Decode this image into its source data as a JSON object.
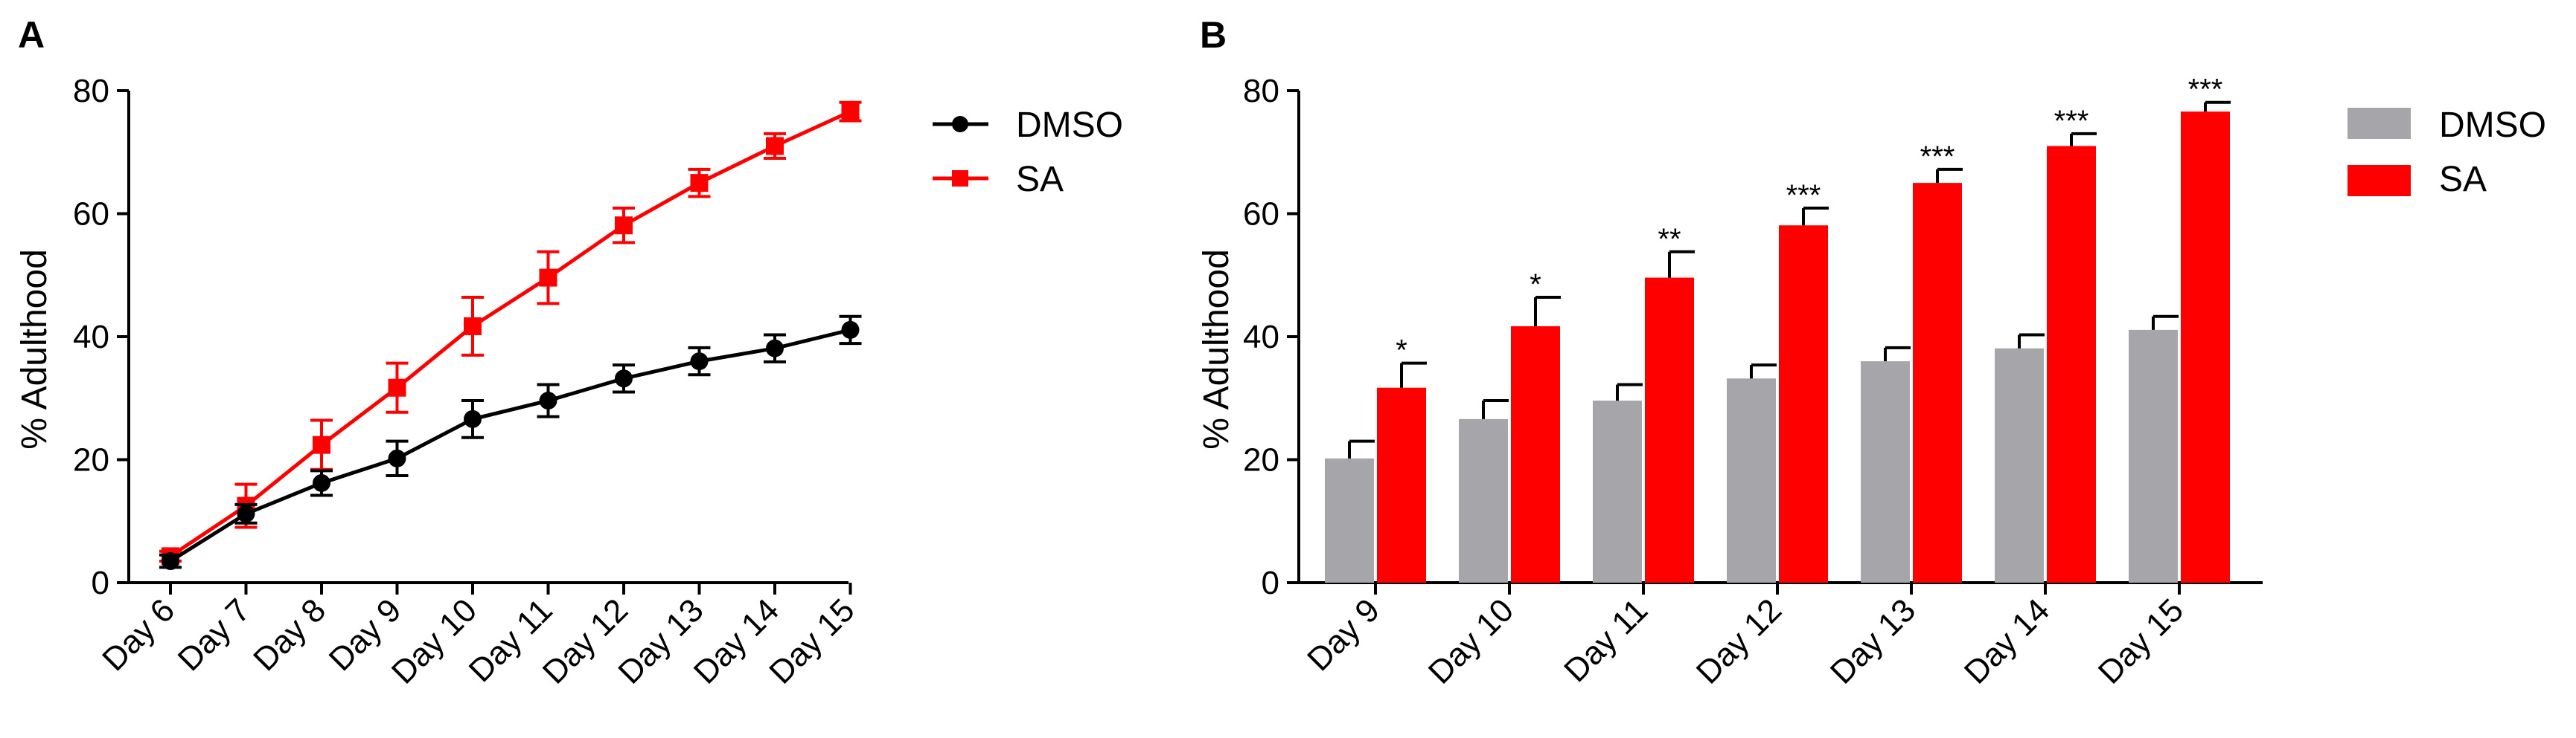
{
  "chart_data": [
    {
      "panel": "A",
      "type": "line",
      "title": "",
      "xlabel": "",
      "ylabel": "% Adulthood",
      "ylim": [
        0,
        80
      ],
      "yticks": [
        "0",
        "20",
        "40",
        "60",
        "80"
      ],
      "categories": [
        "Day 6",
        "Day 7",
        "Day 8",
        "Day 9",
        "Day 10",
        "Day 11",
        "Day 12",
        "Day 13",
        "Day 14",
        "Day 15"
      ],
      "legend_position": "top-right-outside",
      "series": [
        {
          "name": "DMSO",
          "color": "#000000",
          "marker": "circle",
          "values": [
            3.5,
            11.2,
            16.2,
            20.2,
            26.6,
            29.6,
            33.2,
            36.0,
            38.1,
            41.1
          ],
          "errors": [
            1.0,
            1.5,
            2.0,
            2.8,
            3.0,
            2.6,
            2.2,
            2.2,
            2.2,
            2.2
          ]
        },
        {
          "name": "SA",
          "color": "#ff0000",
          "marker": "square",
          "values": [
            4.3,
            12.5,
            22.4,
            31.7,
            41.7,
            49.6,
            58.1,
            65.0,
            71.0,
            76.6
          ],
          "errors": [
            0.8,
            3.5,
            4.0,
            4.0,
            4.7,
            4.2,
            2.8,
            2.2,
            2.0,
            1.5
          ]
        }
      ]
    },
    {
      "panel": "B",
      "type": "bar",
      "title": "",
      "xlabel": "",
      "ylabel": "% Adulthood",
      "ylim": [
        0,
        80
      ],
      "yticks": [
        "0",
        "20",
        "40",
        "60",
        "80"
      ],
      "categories": [
        "Day 9",
        "Day 10",
        "Day 11",
        "Day 12",
        "Day 13",
        "Day 14",
        "Day 15"
      ],
      "legend_position": "top-right-outside",
      "series": [
        {
          "name": "DMSO",
          "color": "#a5a5aa",
          "values": [
            20.2,
            26.6,
            29.6,
            33.2,
            36.0,
            38.1,
            41.1
          ],
          "errors": [
            2.8,
            3.0,
            2.6,
            2.2,
            2.2,
            2.2,
            2.2
          ]
        },
        {
          "name": "SA",
          "color": "#ff0000",
          "values": [
            31.7,
            41.7,
            49.6,
            58.1,
            65.0,
            71.0,
            76.6
          ],
          "errors": [
            4.0,
            4.7,
            4.2,
            2.8,
            2.2,
            2.0,
            1.5
          ]
        }
      ],
      "annotations": [
        "*",
        "*",
        "**",
        "***",
        "***",
        "***",
        "***"
      ]
    }
  ]
}
